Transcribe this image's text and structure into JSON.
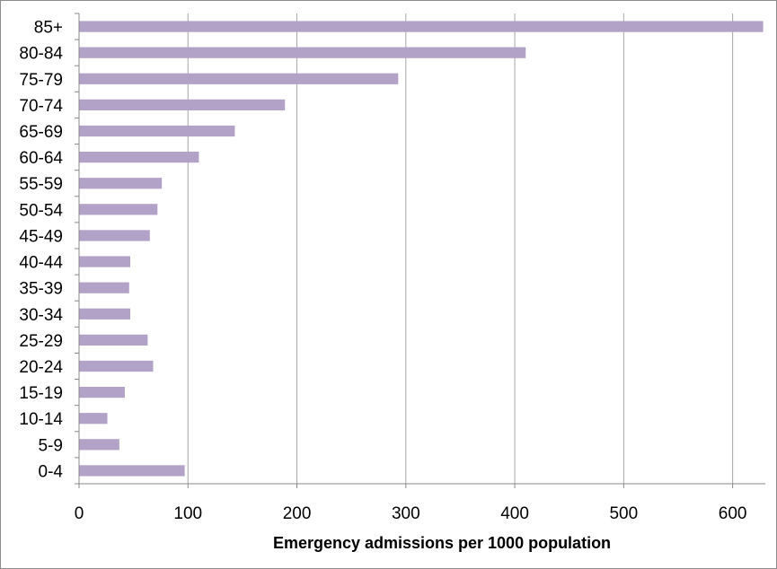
{
  "chart_data": {
    "type": "bar",
    "orientation": "horizontal",
    "title": "",
    "xlabel": "Emergency admissions per 1000 population",
    "ylabel": "",
    "categories": [
      "85+",
      "80-84",
      "75-79",
      "70-74",
      "65-69",
      "60-64",
      "55-59",
      "50-54",
      "45-49",
      "40-44",
      "35-39",
      "30-34",
      "25-29",
      "20-24",
      "15-19",
      "10-14",
      "5-9",
      "0-4"
    ],
    "values": [
      628,
      410,
      293,
      189,
      143,
      110,
      76,
      72,
      65,
      47,
      46,
      47,
      63,
      68,
      42,
      26,
      37,
      97
    ],
    "xlim": [
      0,
      630
    ],
    "xticks": [
      0,
      100,
      200,
      300,
      400,
      500,
      600
    ],
    "grid": "vertical",
    "legend": "none",
    "bar_color": "#b3a2c7",
    "grid_color": "#a6a6a6"
  }
}
